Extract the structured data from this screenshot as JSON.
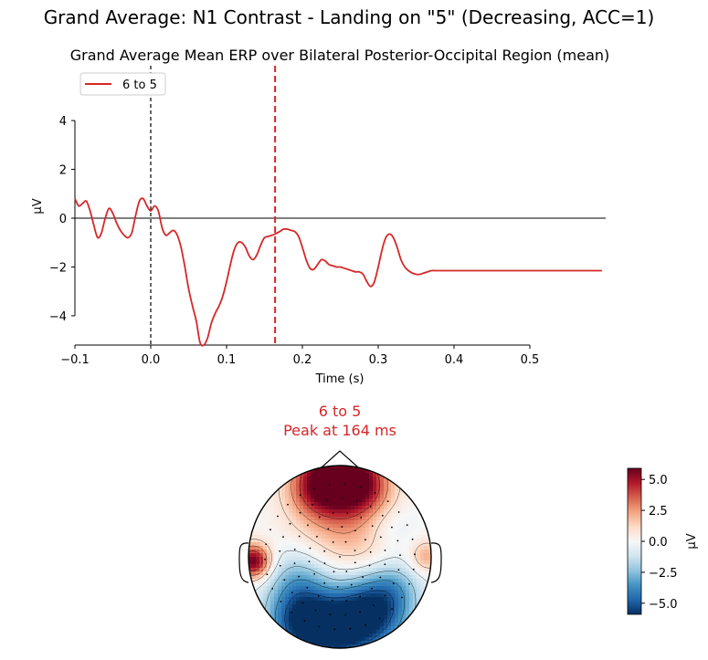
{
  "figure": {
    "suptitle": "Grand Average: N1 Contrast - Landing on \"5\" (Decreasing, ACC=1)"
  },
  "chart_data": [
    {
      "type": "line",
      "title": "Grand Average Mean ERP over Bilateral Posterior-Occipital Region (mean)",
      "xlabel": "Time (s)",
      "ylabel": "µV",
      "xlim": [
        -0.1,
        0.6
      ],
      "ylim": [
        -5.2,
        5.2
      ],
      "xticks": [
        -0.1,
        0.0,
        0.1,
        0.2,
        0.3,
        0.4,
        0.5
      ],
      "xtick_labels": [
        "−0.1",
        "0.0",
        "0.1",
        "0.2",
        "0.3",
        "0.4",
        "0.5"
      ],
      "yticks": [
        -4,
        -2,
        0,
        2,
        4
      ],
      "ytick_labels": [
        "−4",
        "−2",
        "0",
        "2",
        "4"
      ],
      "grid": false,
      "legend": "top-left",
      "series": [
        {
          "name": "6 to 5",
          "color": "#d62728",
          "x": [
            -0.1,
            -0.095,
            -0.09,
            -0.085,
            -0.08,
            -0.075,
            -0.07,
            -0.065,
            -0.06,
            -0.055,
            -0.05,
            -0.045,
            -0.04,
            -0.035,
            -0.03,
            -0.025,
            -0.02,
            -0.015,
            -0.01,
            -0.005,
            0.0,
            0.005,
            0.01,
            0.015,
            0.02,
            0.025,
            0.03,
            0.035,
            0.04,
            0.045,
            0.05,
            0.055,
            0.06,
            0.065,
            0.07,
            0.075,
            0.08,
            0.085,
            0.09,
            0.095,
            0.1,
            0.105,
            0.11,
            0.115,
            0.12,
            0.125,
            0.13,
            0.135,
            0.14,
            0.145,
            0.15,
            0.155,
            0.16,
            0.164,
            0.17,
            0.175,
            0.18,
            0.185,
            0.19,
            0.195,
            0.2,
            0.205,
            0.21,
            0.215,
            0.22,
            0.225,
            0.23,
            0.235,
            0.24,
            0.245,
            0.25,
            0.255,
            0.26,
            0.265,
            0.27,
            0.275,
            0.28,
            0.285,
            0.29,
            0.295,
            0.3,
            0.305,
            0.31,
            0.315,
            0.32,
            0.325,
            0.33,
            0.335,
            0.34,
            0.345,
            0.35,
            0.355,
            0.36,
            0.365,
            0.37,
            0.375,
            0.38,
            0.385,
            0.39,
            0.395,
            0.4,
            0.405,
            0.41,
            0.415,
            0.42,
            0.425,
            0.43,
            0.435,
            0.44,
            0.445,
            0.45,
            0.455,
            0.46,
            0.465,
            0.47,
            0.475,
            0.48,
            0.485,
            0.49,
            0.495,
            0.5,
            0.505,
            0.51,
            0.515,
            0.52,
            0.525,
            0.53,
            0.535,
            0.54,
            0.545,
            0.55,
            0.555,
            0.56,
            0.565,
            0.57,
            0.575,
            0.58,
            0.585,
            0.59,
            0.595
          ],
          "values": [
            0.8,
            0.5,
            0.6,
            0.7,
            0.3,
            -0.3,
            -0.8,
            -0.6,
            0.0,
            0.4,
            0.2,
            -0.2,
            -0.5,
            -0.7,
            -0.8,
            -0.6,
            0.1,
            0.7,
            0.8,
            0.5,
            0.3,
            0.5,
            0.3,
            -0.4,
            -0.7,
            -0.6,
            -0.5,
            -0.7,
            -1.2,
            -2.0,
            -2.9,
            -3.6,
            -4.2,
            -5.1,
            -5.2,
            -4.9,
            -4.3,
            -3.9,
            -3.6,
            -3.2,
            -2.6,
            -1.9,
            -1.3,
            -1.0,
            -1.0,
            -1.2,
            -1.55,
            -1.7,
            -1.5,
            -1.1,
            -0.8,
            -0.75,
            -0.7,
            -0.65,
            -0.55,
            -0.45,
            -0.45,
            -0.5,
            -0.55,
            -0.75,
            -1.2,
            -1.7,
            -2.05,
            -2.1,
            -1.9,
            -1.7,
            -1.75,
            -1.9,
            -1.95,
            -2.0,
            -2.0,
            -2.05,
            -2.1,
            -2.15,
            -2.2,
            -2.2,
            -2.3,
            -2.6,
            -2.8,
            -2.6,
            -2.0,
            -1.3,
            -0.8,
            -0.65,
            -0.8,
            -1.2,
            -1.7,
            -2.0,
            -2.15,
            -2.25,
            -2.3,
            -2.3,
            -2.25,
            -2.2,
            -2.15,
            -2.15,
            -2.15,
            -2.15,
            -2.15,
            -2.15,
            -2.15,
            -2.15,
            -2.15,
            -2.15,
            -2.15,
            -2.15,
            -2.15,
            -2.15,
            -2.15,
            -2.15,
            -2.15,
            -2.15,
            -2.15,
            -2.15,
            -2.15,
            -2.15,
            -2.15,
            -2.15,
            -2.15,
            -2.15,
            -2.15,
            -2.15,
            -2.15,
            -2.15,
            -2.15,
            -2.15,
            -2.15,
            -2.15,
            -2.15,
            -2.15,
            -2.15,
            -2.15,
            -2.15,
            -2.15,
            -2.15,
            -2.15,
            -2.15,
            -2.15,
            -2.15,
            -2.15
          ]
        }
      ],
      "vlines": [
        {
          "x": 0.0,
          "color": "#000000",
          "style": "dashed"
        },
        {
          "x": 0.164,
          "color": "#d62728",
          "style": "dashed"
        }
      ],
      "hline": {
        "y": 0,
        "color": "#000000"
      }
    },
    {
      "type": "heatmap",
      "subtype": "topomap",
      "title_line1": "6 to 5",
      "title_line2": "Peak at 164 ms",
      "title_color": "#d62728",
      "colorbar": {
        "label": "µV",
        "vmin": -5.9,
        "vmax": 5.9,
        "ticks": [
          5.0,
          2.5,
          0.0,
          -2.5,
          -5.0
        ],
        "tick_labels": [
          "5.0",
          "2.5",
          "0.0",
          "−2.5",
          "−5.0"
        ],
        "cmap": [
          "#053061",
          "#2166ac",
          "#4393c3",
          "#92c5de",
          "#d1e5f0",
          "#f7f7f7",
          "#fddbc7",
          "#f4a582",
          "#d6604d",
          "#b2182b",
          "#67001f"
        ]
      },
      "sources": [
        {
          "u": 0.0,
          "v": 0.88,
          "sigma": 0.28,
          "amp": 6.5
        },
        {
          "u": -0.28,
          "v": 0.75,
          "sigma": 0.22,
          "amp": 2.5
        },
        {
          "u": 0.28,
          "v": 0.75,
          "sigma": 0.22,
          "amp": 2.5
        },
        {
          "u": -0.95,
          "v": -0.05,
          "sigma": 0.13,
          "amp": 6.0
        },
        {
          "u": 0.95,
          "v": 0.0,
          "sigma": 0.12,
          "amp": 2.2
        },
        {
          "u": -0.05,
          "v": 0.3,
          "sigma": 0.35,
          "amp": 1.5
        },
        {
          "u": 0.35,
          "v": 0.05,
          "sigma": 0.3,
          "amp": 1.0
        },
        {
          "u": -0.4,
          "v": -0.72,
          "sigma": 0.28,
          "amp": -5.8
        },
        {
          "u": 0.35,
          "v": -0.6,
          "sigma": 0.3,
          "amp": -6.0
        },
        {
          "u": 0.0,
          "v": -0.85,
          "sigma": 0.25,
          "amp": -3.5
        },
        {
          "u": -0.45,
          "v": -0.25,
          "sigma": 0.25,
          "amp": -2.2
        },
        {
          "u": 0.6,
          "v": -0.3,
          "sigma": 0.2,
          "amp": -1.5
        },
        {
          "u": 0.55,
          "v": 0.3,
          "sigma": 0.2,
          "amp": -1.0
        }
      ]
    }
  ]
}
